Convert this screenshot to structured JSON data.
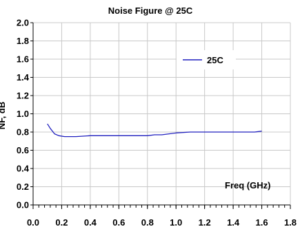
{
  "colors": {
    "series": "#1f1fbf",
    "grid": "#c8c8c8",
    "axis": "#000000",
    "background": "#ffffff"
  },
  "chart_data": {
    "type": "line",
    "title": "Noise Figure @ 25C",
    "xlabel": "",
    "ylabel": "NF, dB",
    "annotation": "Freq (GHz)",
    "xlim": [
      0.0,
      1.8
    ],
    "ylim": [
      0.0,
      2.0
    ],
    "x_ticks": [
      "0.0",
      "0.2",
      "0.4",
      "0.6",
      "0.8",
      "1.0",
      "1.2",
      "1.4",
      "1.6",
      "1.8"
    ],
    "y_ticks": [
      "0.0",
      "0.2",
      "0.4",
      "0.6",
      "0.8",
      "1.0",
      "1.2",
      "1.4",
      "1.6",
      "1.8",
      "2.0"
    ],
    "grid": true,
    "legend_position": "top-right",
    "series": [
      {
        "name": "25C",
        "x": [
          0.1,
          0.12,
          0.15,
          0.18,
          0.22,
          0.3,
          0.4,
          0.5,
          0.6,
          0.7,
          0.8,
          0.85,
          0.9,
          1.0,
          1.1,
          1.2,
          1.3,
          1.4,
          1.5,
          1.55,
          1.6
        ],
        "y": [
          0.89,
          0.84,
          0.78,
          0.76,
          0.75,
          0.75,
          0.76,
          0.76,
          0.76,
          0.76,
          0.76,
          0.77,
          0.77,
          0.79,
          0.8,
          0.8,
          0.8,
          0.8,
          0.8,
          0.8,
          0.81
        ]
      }
    ]
  }
}
